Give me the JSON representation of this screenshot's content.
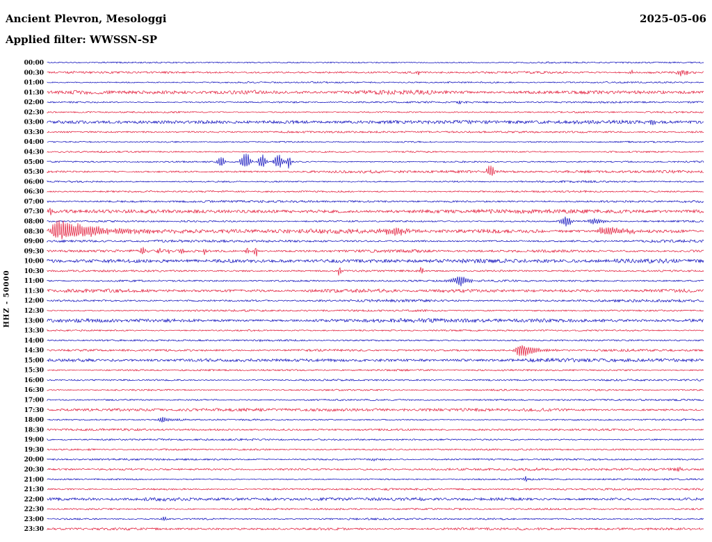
{
  "header": {
    "station": "Ancient Plevron, Mesologgi",
    "date": "2025-05-06",
    "filter_label": "Applied filter: WWSSN-SP"
  },
  "axis": {
    "y_label": "HHZ - 50000"
  },
  "chart_data": {
    "type": "line",
    "subtype": "helicorder-seismogram",
    "title": "Ancient Plevron, Mesologgi",
    "date": "2025-05-06",
    "filter": "WWSSN-SP",
    "y_label": "HHZ - 50000",
    "row_duration_minutes": 30,
    "time_start": "00:00",
    "time_end": "23:59",
    "legend": "none",
    "grid": false,
    "colors": {
      "blue": "#0000b8",
      "red": "#e01030"
    },
    "rows": [
      {
        "time": "00:00",
        "color": "blue",
        "noise": 0.9,
        "events": []
      },
      {
        "time": "00:30",
        "color": "red",
        "noise": 1.2,
        "events": [
          {
            "t": 0.565,
            "amp": 3,
            "w": 2
          },
          {
            "t": 0.89,
            "amp": 4,
            "w": 3
          },
          {
            "t": 0.968,
            "amp": 5,
            "w": 5
          }
        ]
      },
      {
        "time": "01:00",
        "color": "blue",
        "noise": 0.8,
        "events": []
      },
      {
        "time": "01:30",
        "color": "red",
        "noise": 2.2,
        "events": []
      },
      {
        "time": "02:00",
        "color": "blue",
        "noise": 0.9,
        "events": [
          {
            "t": 0.627,
            "amp": 4,
            "w": 2
          }
        ]
      },
      {
        "time": "02:30",
        "color": "red",
        "noise": 1.0,
        "events": []
      },
      {
        "time": "03:00",
        "color": "blue",
        "noise": 2.0,
        "events": [
          {
            "t": 0.92,
            "amp": 6,
            "w": 4
          }
        ]
      },
      {
        "time": "03:30",
        "color": "red",
        "noise": 1.0,
        "events": []
      },
      {
        "time": "04:00",
        "color": "blue",
        "noise": 0.8,
        "events": []
      },
      {
        "time": "04:30",
        "color": "red",
        "noise": 0.9,
        "events": []
      },
      {
        "time": "05:00",
        "color": "blue",
        "noise": 1.0,
        "events": [
          {
            "t": 0.265,
            "amp": 9,
            "w": 4
          },
          {
            "t": 0.302,
            "amp": 15,
            "w": 5
          },
          {
            "t": 0.327,
            "amp": 13,
            "w": 4
          },
          {
            "t": 0.352,
            "amp": 13,
            "w": 4
          },
          {
            "t": 0.368,
            "amp": 11,
            "w": 3
          }
        ]
      },
      {
        "time": "05:30",
        "color": "red",
        "noise": 1.5,
        "events": [
          {
            "t": 0.675,
            "amp": 10,
            "w": 4
          }
        ]
      },
      {
        "time": "06:00",
        "color": "blue",
        "noise": 1.0,
        "events": []
      },
      {
        "time": "06:30",
        "color": "red",
        "noise": 0.9,
        "events": []
      },
      {
        "time": "07:00",
        "color": "blue",
        "noise": 1.3,
        "events": []
      },
      {
        "time": "07:30",
        "color": "red",
        "noise": 2.2,
        "events": [
          {
            "t": 0.006,
            "amp": 7,
            "w": 3
          }
        ]
      },
      {
        "time": "08:00",
        "color": "blue",
        "noise": 1.1,
        "events": [
          {
            "t": 0.79,
            "amp": 11,
            "w": 5
          },
          {
            "t": 0.835,
            "amp": 5,
            "w": 8
          }
        ]
      },
      {
        "time": "08:30",
        "color": "red",
        "noise": 2.3,
        "events": [
          {
            "t": 0.012,
            "amp": 20,
            "w": 4,
            "decay": 60
          },
          {
            "t": 0.53,
            "amp": 6,
            "w": 16
          },
          {
            "t": 0.855,
            "amp": 9,
            "w": 10,
            "decay": 25
          }
        ]
      },
      {
        "time": "09:00",
        "color": "blue",
        "noise": 1.4,
        "events": []
      },
      {
        "time": "09:30",
        "color": "red",
        "noise": 1.5,
        "events": [
          {
            "t": 0.145,
            "amp": 7,
            "w": 2
          },
          {
            "t": 0.17,
            "amp": 6,
            "w": 2
          },
          {
            "t": 0.185,
            "amp": 5,
            "w": 2
          },
          {
            "t": 0.205,
            "amp": 7,
            "w": 2
          },
          {
            "t": 0.24,
            "amp": 7,
            "w": 2
          },
          {
            "t": 0.305,
            "amp": 8,
            "w": 2
          },
          {
            "t": 0.318,
            "amp": 7,
            "w": 2
          }
        ]
      },
      {
        "time": "10:00",
        "color": "blue",
        "noise": 2.2,
        "events": []
      },
      {
        "time": "10:30",
        "color": "red",
        "noise": 1.0,
        "events": [
          {
            "t": 0.445,
            "amp": 8,
            "w": 2
          },
          {
            "t": 0.57,
            "amp": 8,
            "w": 2
          }
        ]
      },
      {
        "time": "11:00",
        "color": "blue",
        "noise": 1.0,
        "events": [
          {
            "t": 0.63,
            "amp": 8,
            "w": 10
          }
        ]
      },
      {
        "time": "11:30",
        "color": "red",
        "noise": 1.8,
        "events": []
      },
      {
        "time": "12:00",
        "color": "blue",
        "noise": 1.3,
        "events": []
      },
      {
        "time": "12:30",
        "color": "red",
        "noise": 1.0,
        "events": []
      },
      {
        "time": "13:00",
        "color": "blue",
        "noise": 2.0,
        "events": []
      },
      {
        "time": "13:30",
        "color": "red",
        "noise": 0.9,
        "events": []
      },
      {
        "time": "14:00",
        "color": "blue",
        "noise": 0.9,
        "events": [
          {
            "t": 0.33,
            "amp": 3,
            "w": 6
          }
        ]
      },
      {
        "time": "14:30",
        "color": "red",
        "noise": 1.2,
        "events": [
          {
            "t": 0.72,
            "amp": 13,
            "w": 5,
            "decay": 20
          }
        ]
      },
      {
        "time": "15:00",
        "color": "blue",
        "noise": 1.8,
        "events": []
      },
      {
        "time": "15:30",
        "color": "red",
        "noise": 0.9,
        "events": []
      },
      {
        "time": "16:00",
        "color": "blue",
        "noise": 1.0,
        "events": []
      },
      {
        "time": "16:30",
        "color": "red",
        "noise": 0.9,
        "events": []
      },
      {
        "time": "17:00",
        "color": "blue",
        "noise": 0.9,
        "events": []
      },
      {
        "time": "17:30",
        "color": "red",
        "noise": 1.5,
        "events": []
      },
      {
        "time": "18:00",
        "color": "blue",
        "noise": 0.9,
        "events": [
          {
            "t": 0.175,
            "amp": 6,
            "w": 4,
            "decay": 14
          }
        ]
      },
      {
        "time": "18:30",
        "color": "red",
        "noise": 1.2,
        "events": []
      },
      {
        "time": "19:00",
        "color": "blue",
        "noise": 0.9,
        "events": []
      },
      {
        "time": "19:30",
        "color": "red",
        "noise": 0.9,
        "events": []
      },
      {
        "time": "20:00",
        "color": "blue",
        "noise": 0.9,
        "events": [
          {
            "t": 0.497,
            "amp": 3,
            "w": 3
          }
        ]
      },
      {
        "time": "20:30",
        "color": "red",
        "noise": 1.4,
        "events": [
          {
            "t": 0.963,
            "amp": 4,
            "w": 3
          }
        ]
      },
      {
        "time": "21:00",
        "color": "blue",
        "noise": 0.9,
        "events": [
          {
            "t": 0.728,
            "amp": 4,
            "w": 3
          }
        ]
      },
      {
        "time": "21:30",
        "color": "red",
        "noise": 1.0,
        "events": []
      },
      {
        "time": "22:00",
        "color": "blue",
        "noise": 2.0,
        "events": []
      },
      {
        "time": "22:30",
        "color": "red",
        "noise": 1.0,
        "events": []
      },
      {
        "time": "23:00",
        "color": "blue",
        "noise": 0.9,
        "events": [
          {
            "t": 0.178,
            "amp": 3,
            "w": 4
          }
        ]
      },
      {
        "time": "23:30",
        "color": "red",
        "noise": 1.3,
        "events": []
      }
    ]
  }
}
